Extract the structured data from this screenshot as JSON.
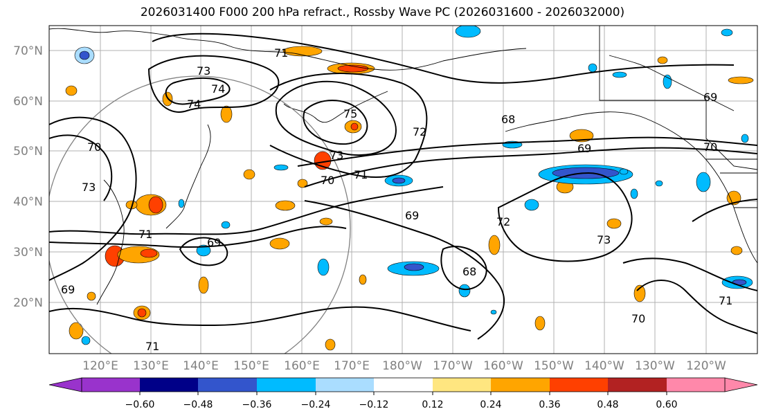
{
  "title": "2026031400 F000 200 hPa refract., Rossby Wave PC (2026031600 - 2026032000)",
  "lat_labels": [
    "70°N",
    "60°N",
    "50°N",
    "40°N",
    "30°N",
    "20°N"
  ],
  "lon_labels": [
    "120°E",
    "130°E",
    "140°E",
    "150°E",
    "160°E",
    "170°E",
    "180°W",
    "170°W",
    "160°W",
    "150°W",
    "140°W",
    "130°W",
    "120°W"
  ],
  "contour_labels": [
    "71",
    "73",
    "74",
    "74",
    "75",
    "72",
    "73",
    "71",
    "70",
    "69",
    "69",
    "68",
    "72",
    "73",
    "71",
    "70",
    "69",
    "70",
    "68",
    "69",
    "71",
    "73",
    "70",
    "69",
    "71"
  ],
  "colorbar": {
    "colors": [
      "#9933cc",
      "#000088",
      "#3355cc",
      "#00bbff",
      "#aaddff",
      "#ffffff",
      "#ffe680",
      "#ffa500",
      "#ff4000",
      "#b22222",
      "#ff88aa"
    ],
    "ticks": [
      "−0.60",
      "−0.48",
      "−0.36",
      "−0.24",
      "−0.12",
      "0.12",
      "0.24",
      "0.36",
      "0.48",
      "0.60"
    ]
  }
}
